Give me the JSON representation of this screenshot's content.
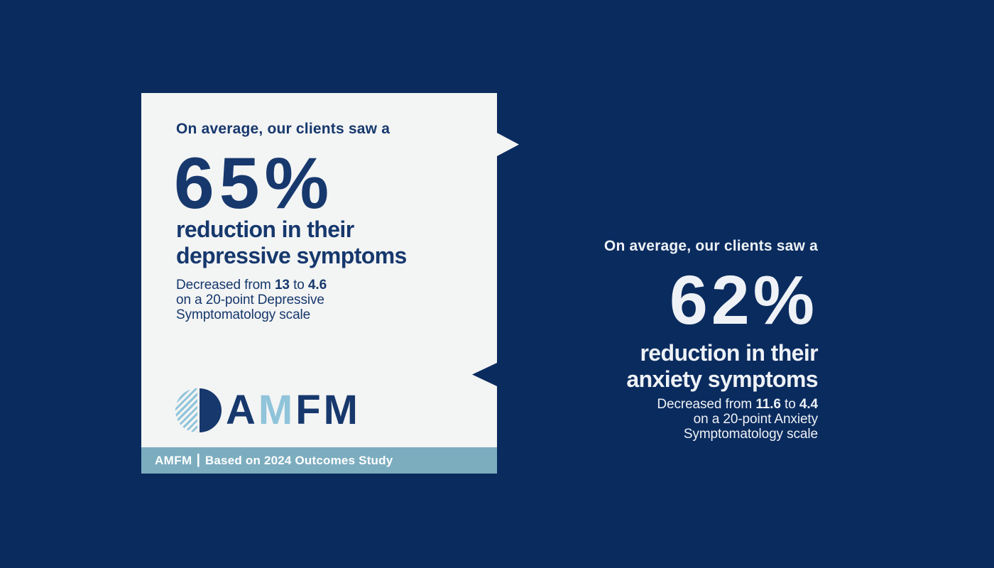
{
  "colors": {
    "background_navy": "#0a2b5e",
    "card_background": "#f3f4f4",
    "text_navy": "#16386d",
    "text_light": "#eef2f6",
    "footer_bar": "#7cadbf",
    "logo_light_blue": "#8fc4da"
  },
  "card": {
    "intro": "On average, our clients saw a",
    "stat": "65%",
    "headline": [
      "reduction in their",
      "depressive symptoms"
    ],
    "detail": {
      "lead": "Decreased from",
      "value_from": "13",
      "joiner": "to",
      "value_to": "4.6",
      "line2": "on a 20-point Depressive",
      "line3": "Symptomatology scale"
    },
    "logo": {
      "letters": [
        "A",
        "M",
        "F",
        "M"
      ]
    },
    "footer": {
      "brand": "AMFM",
      "divider": "|",
      "caption": "Based on 2024 Outcomes Study"
    }
  },
  "panel": {
    "intro": "On average, our clients saw a",
    "stat": "62%",
    "headline": [
      "reduction in their",
      "anxiety symptoms"
    ],
    "detail": {
      "lead": "Decreased from",
      "value_from": "11.6",
      "joiner": "to",
      "value_to": "4.4",
      "line2": "on a 20-point Anxiety",
      "line3": "Symptomatology scale"
    }
  }
}
